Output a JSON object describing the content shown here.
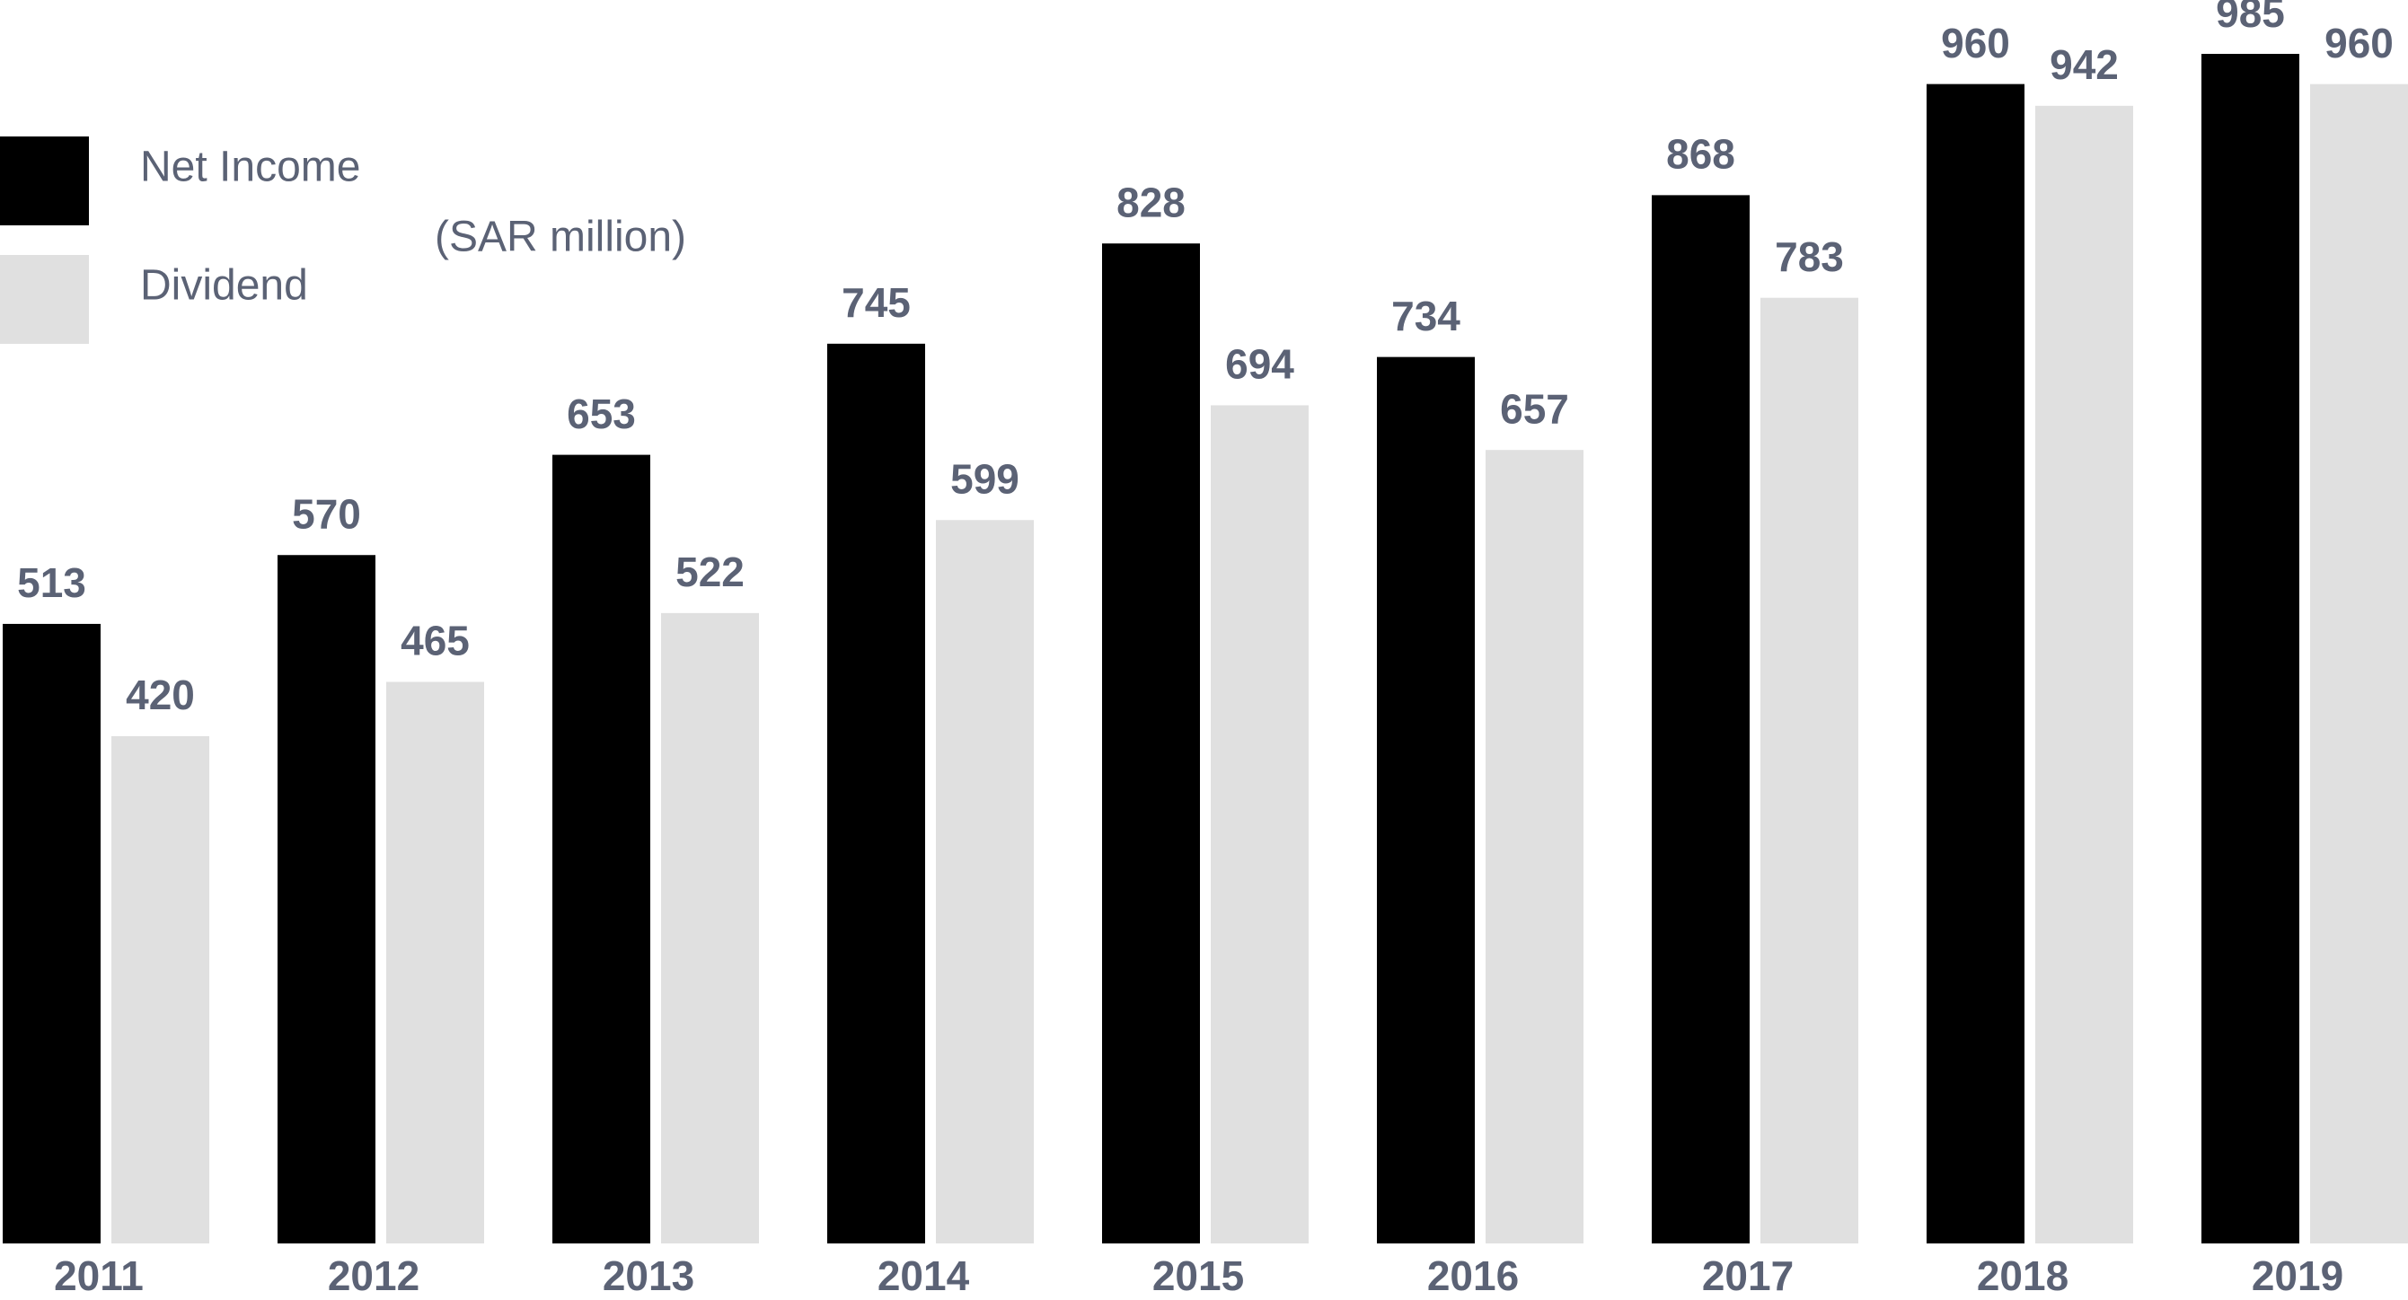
{
  "chart_data": {
    "type": "bar",
    "subtitle": "(SAR million)",
    "categories": [
      "2011",
      "2012",
      "2013",
      "2014",
      "2015",
      "2016",
      "2017",
      "2018",
      "2019"
    ],
    "series": [
      {
        "name": "Net Income",
        "color": "#000000",
        "values": [
          513,
          570,
          653,
          745,
          828,
          734,
          868,
          960,
          985
        ]
      },
      {
        "name": "Dividend",
        "color": "#e0e0e0",
        "values": [
          420,
          465,
          522,
          599,
          694,
          657,
          783,
          942,
          960
        ]
      }
    ]
  }
}
